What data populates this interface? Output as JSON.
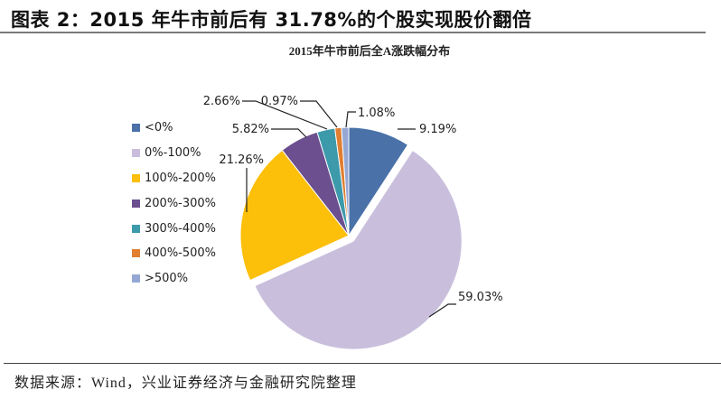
{
  "figure": {
    "title": "图表 2：2015 年牛市前后有 31.78%的个股实现股价翻倍",
    "source": "数据来源：Wind，兴业证券经济与金融研究院整理"
  },
  "chart_data": {
    "type": "pie",
    "title": "2015年牛市前后全A涨跌幅分布",
    "categories": [
      "<0%",
      "0%-100%",
      "100%-200%",
      "200%-300%",
      "300%-400%",
      "400%-500%",
      ">500%"
    ],
    "values": [
      9.19,
      59.03,
      21.26,
      5.82,
      2.66,
      0.97,
      1.08
    ],
    "labels": [
      "9.19%",
      "59.03%",
      "21.26%",
      "5.82%",
      "2.66%",
      "0.97%",
      "1.08%"
    ],
    "colors": [
      "#4a71a8",
      "#c9bfdd",
      "#fcbf0a",
      "#6b4f8e",
      "#3c9aab",
      "#e07f31",
      "#95a8d4"
    ],
    "exploded": "0%-100%",
    "start_angle_deg": 0,
    "direction": "clockwise",
    "legend_position": "left",
    "unit": "%"
  }
}
